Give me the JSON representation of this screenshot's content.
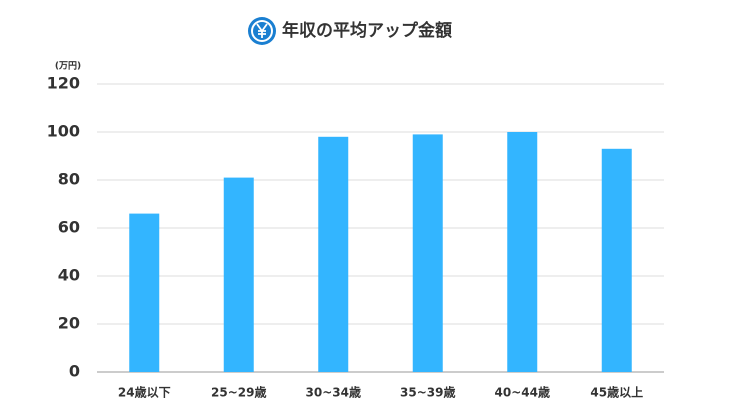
{
  "chart_data": {
    "type": "bar",
    "title": "年収の平均アップ金額",
    "y_label": "(万円)",
    "categories": [
      "24歳以下",
      "25~29歳",
      "30~34歳",
      "35~39歳",
      "40~44歳",
      "45歳以上"
    ],
    "values": [
      66,
      81,
      98,
      99,
      100,
      93
    ],
    "color": "#33b5ff",
    "ylim": [
      0,
      120
    ],
    "yticks": [
      0,
      20,
      40,
      60,
      80,
      100,
      120
    ],
    "grid": true
  }
}
